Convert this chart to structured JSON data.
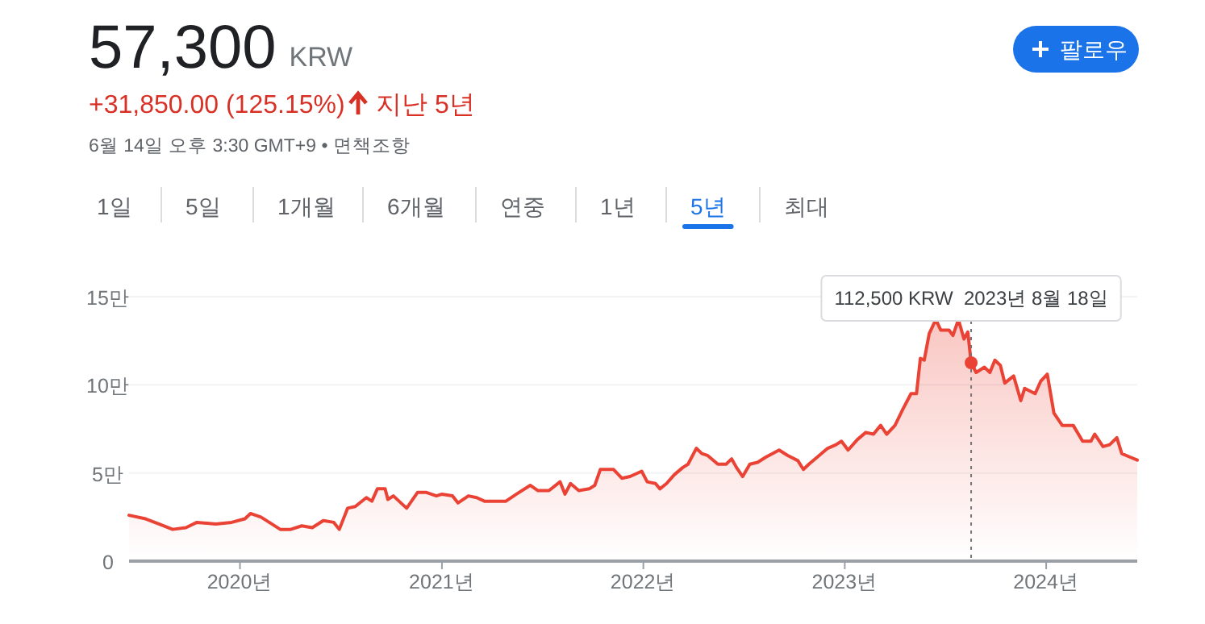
{
  "chart_data": [
    {
      "type": "other",
      "title": "57,300",
      "annotations": [
        "KRW",
        "+31,850.00 (125.15%)",
        "지난 5년",
        "6월 14일 오후 3:30 GMT+9 • 면책조항",
        "1일",
        "5일",
        "1개월",
        "6개월",
        "연중",
        "1년",
        "5년",
        "최대",
        "팔로우"
      ]
    },
    {
      "type": "area",
      "grid": "y",
      "xlim": [
        "2019-06-14",
        "2024-06-14"
      ],
      "xticks": [
        {
          "value": "2020-01-01",
          "label": "2020년"
        },
        {
          "value": "2021-01-01",
          "label": "2021년"
        },
        {
          "value": "2022-01-01",
          "label": "2022년"
        },
        {
          "value": "2023-01-01",
          "label": "2023년"
        },
        {
          "value": "2024-01-01",
          "label": "2024년"
        }
      ],
      "ylim": [
        0,
        15
      ],
      "yticks": [
        0,
        {
          "value": 5,
          "label": "5만"
        },
        {
          "value": 10,
          "label": "10만"
        },
        {
          "value": 15,
          "label": "15만"
        }
      ],
      "ref_lines": [
        {
          "axis": "x",
          "value": "2023-08-18",
          "color": "#757575",
          "line_style": "dotted"
        }
      ],
      "annotations": [
        {
          "text": "112,500 KRW  2023년 8월 18일",
          "x": "2023-08-18",
          "y": 11.25
        }
      ],
      "series": [
        {
          "color": "#ea4335",
          "x": [
            "2019-06-14",
            "2019-07-14",
            "2019-08-08",
            "2019-09-01",
            "2019-09-25",
            "2019-10-15",
            "2019-11-18",
            "2019-12-17",
            "2020-01-10",
            "2020-01-20",
            "2020-02-08",
            "2020-02-23",
            "2020-03-14",
            "2020-04-02",
            "2020-04-22",
            "2020-05-11",
            "2020-05-31",
            "2020-06-19",
            "2020-06-29",
            "2020-07-14",
            "2020-07-28",
            "2020-08-17",
            "2020-08-27",
            "2020-09-06",
            "2020-09-20",
            "2020-09-25",
            "2020-10-05",
            "2020-10-29",
            "2020-11-18",
            "2020-12-03",
            "2020-12-22",
            "2021-01-01",
            "2021-01-20",
            "2021-01-30",
            "2021-02-18",
            "2021-03-05",
            "2021-03-19",
            "2021-04-08",
            "2021-04-27",
            "2021-05-16",
            "2021-06-10",
            "2021-06-24",
            "2021-07-14",
            "2021-08-03",
            "2021-08-12",
            "2021-08-22",
            "2021-09-06",
            "2021-09-25",
            "2021-10-05",
            "2021-10-15",
            "2021-10-29",
            "2021-11-08",
            "2021-11-23",
            "2021-12-08",
            "2021-12-29",
            "2022-01-08",
            "2022-01-23",
            "2022-01-31",
            "2022-02-12",
            "2022-02-26",
            "2022-03-13",
            "2022-03-23",
            "2022-04-07",
            "2022-04-17",
            "2022-04-27",
            "2022-05-16",
            "2022-05-31",
            "2022-06-10",
            "2022-06-19",
            "2022-06-30",
            "2022-07-13",
            "2022-07-27",
            "2022-08-11",
            "2022-09-04",
            "2022-09-19",
            "2022-10-08",
            "2022-10-18",
            "2022-10-28",
            "2022-11-16",
            "2022-12-01",
            "2022-12-16",
            "2022-12-26",
            "2023-01-07",
            "2023-01-24",
            "2023-02-08",
            "2023-02-22",
            "2023-03-07",
            "2023-03-18",
            "2023-04-02",
            "2023-04-16",
            "2023-05-01",
            "2023-05-11",
            "2023-05-18",
            "2023-05-25",
            "2023-06-03",
            "2023-06-15",
            "2023-06-24",
            "2023-07-09",
            "2023-07-16",
            "2023-07-26",
            "2023-08-05",
            "2023-08-12",
            "2023-08-18",
            "2023-08-27",
            "2023-09-11",
            "2023-09-21",
            "2023-09-30",
            "2023-10-10",
            "2023-10-18",
            "2023-11-03",
            "2023-11-16",
            "2023-11-23",
            "2023-12-12",
            "2023-12-22",
            "2024-01-03",
            "2024-01-15",
            "2024-01-30",
            "2024-02-19",
            "2024-03-07",
            "2024-03-22",
            "2024-03-29",
            "2024-04-13",
            "2024-04-25",
            "2024-05-08",
            "2024-05-17",
            "2024-06-01",
            "2024-06-14"
          ],
          "values": [
            2.6,
            2.4,
            2.1,
            1.8,
            1.9,
            2.2,
            2.1,
            2.2,
            2.4,
            2.7,
            2.5,
            2.2,
            1.8,
            1.8,
            2.0,
            1.9,
            2.3,
            2.2,
            1.8,
            3.0,
            3.1,
            3.6,
            3.4,
            4.1,
            4.1,
            3.5,
            3.7,
            3.0,
            3.9,
            3.9,
            3.7,
            3.8,
            3.7,
            3.3,
            3.7,
            3.6,
            3.4,
            3.4,
            3.4,
            3.8,
            4.3,
            4.0,
            4.0,
            4.5,
            3.8,
            4.4,
            4.0,
            4.1,
            4.3,
            5.2,
            5.2,
            5.2,
            4.7,
            4.8,
            5.1,
            4.5,
            4.4,
            4.1,
            4.4,
            4.9,
            5.3,
            5.5,
            6.4,
            6.1,
            6.0,
            5.5,
            5.5,
            5.8,
            5.3,
            4.8,
            5.5,
            5.6,
            5.9,
            6.3,
            6.0,
            5.7,
            5.2,
            5.5,
            6.0,
            6.4,
            6.6,
            6.8,
            6.3,
            6.9,
            7.3,
            7.2,
            7.7,
            7.2,
            7.7,
            8.6,
            9.5,
            9.5,
            11.5,
            11.4,
            12.9,
            13.7,
            13.1,
            13.1,
            12.8,
            13.7,
            12.6,
            13.0,
            11.25,
            10.7,
            11.0,
            10.7,
            11.4,
            11.1,
            10.1,
            10.5,
            9.1,
            9.8,
            9.5,
            10.2,
            10.6,
            8.4,
            7.7,
            7.7,
            6.8,
            6.8,
            7.2,
            6.5,
            6.6,
            7.0,
            6.1,
            5.9,
            5.73
          ]
        }
      ]
    }
  ]
}
